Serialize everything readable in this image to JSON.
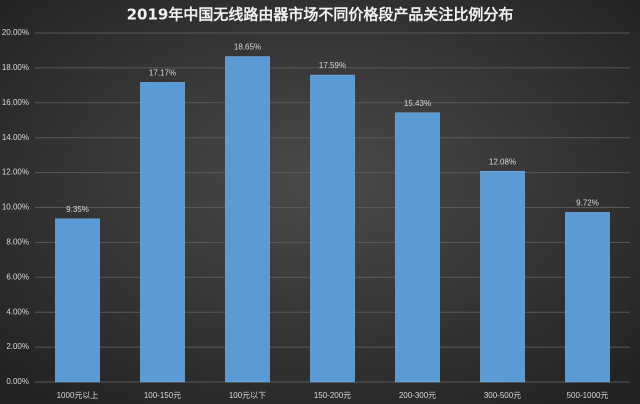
{
  "chart_data": {
    "type": "bar",
    "title": "2019年中国无线路由器市场不同价格段产品关注比例分布",
    "categories": [
      "1000元以上",
      "100-150元",
      "100元以下",
      "150-200元",
      "200-300元",
      "300-500元",
      "500-1000元"
    ],
    "values": [
      9.35,
      17.17,
      18.65,
      17.59,
      15.43,
      12.08,
      9.72
    ],
    "value_labels": [
      "9.35%",
      "17.17%",
      "18.65%",
      "17.59%",
      "15.43%",
      "12.08%",
      "9.72%"
    ],
    "color": "#5b9bd5",
    "ylim": [
      0,
      20
    ],
    "yticks": [
      {
        "value": 0,
        "label": "0.00%"
      },
      {
        "value": 2,
        "label": "2.00%"
      },
      {
        "value": 4,
        "label": "4.00%"
      },
      {
        "value": 6,
        "label": "6.00%"
      },
      {
        "value": 8,
        "label": "8.00%"
      },
      {
        "value": 10,
        "label": "10.00%"
      },
      {
        "value": 12,
        "label": "12.00%"
      },
      {
        "value": 14,
        "label": "14.00%"
      },
      {
        "value": 16,
        "label": "16.00%"
      },
      {
        "value": 18,
        "label": "18.00%"
      },
      {
        "value": 20,
        "label": "20.00%"
      }
    ],
    "grid": true
  }
}
